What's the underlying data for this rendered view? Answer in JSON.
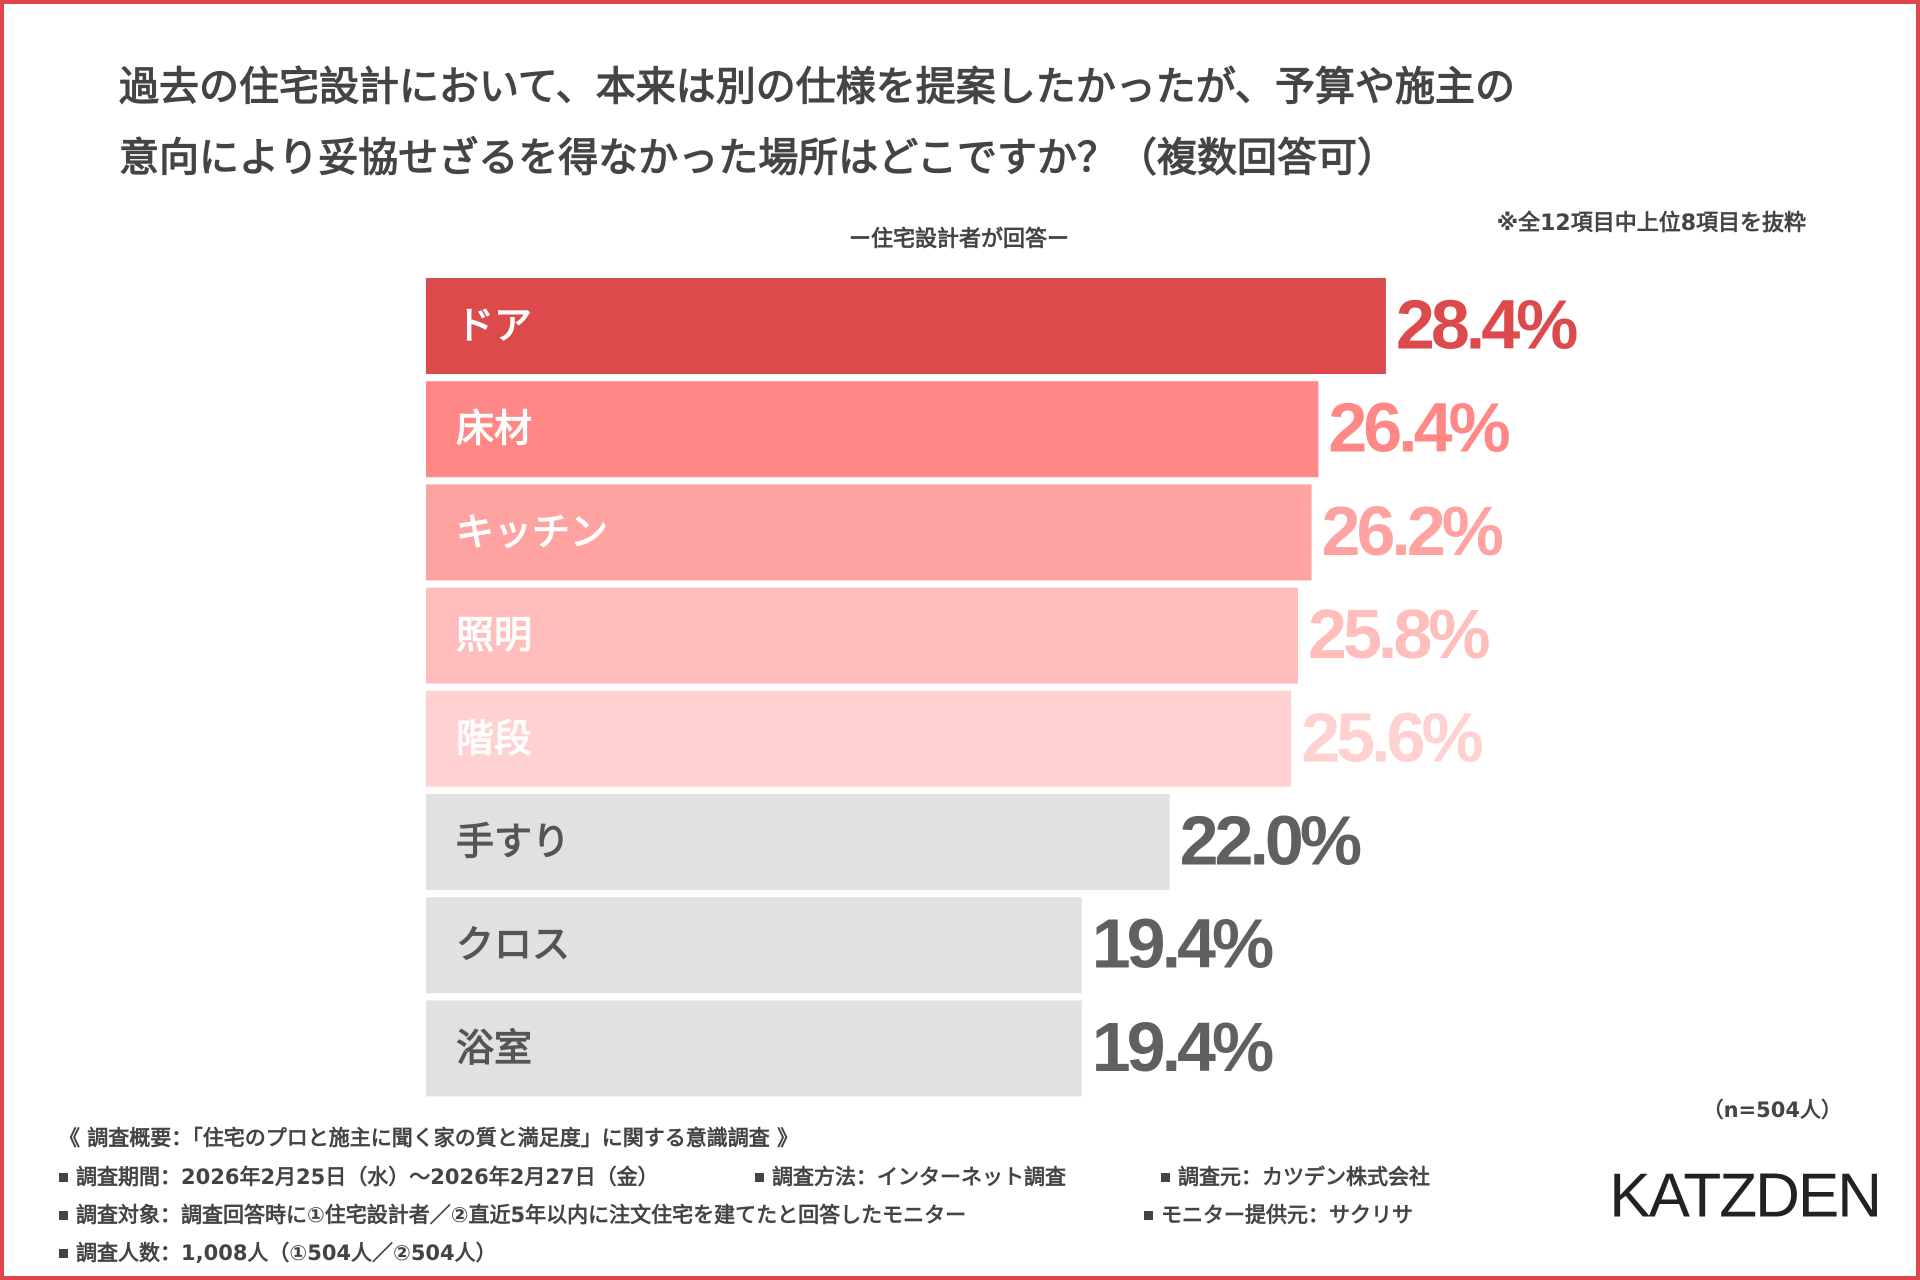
{
  "chart_data": {
    "type": "hbar",
    "title": [
      "過去の住宅設計において、本来は別の仕様を提案したかったが、予算や施主の",
      "意向により妥協せざるを得なかった場所はどこですか？（複数回答可）"
    ],
    "subtitle": "ー住宅設計者が回答ー",
    "note": "※全12項目中上位8項目を抜粋",
    "categories": [
      "ドア",
      "床材",
      "キッチン",
      "照明",
      "階段",
      "手すり",
      "クロス",
      "浴室"
    ],
    "values": [
      28.4,
      26.4,
      26.2,
      25.8,
      25.6,
      22.0,
      19.4,
      19.4
    ],
    "value_labels": [
      "28.4%",
      "26.4%",
      "26.2%",
      "25.8%",
      "25.6%",
      "22.0%",
      "19.4%",
      "19.4%"
    ],
    "colors": [
      "#dc4a4c",
      "#ff8886",
      "#ffa3a2",
      "#ffbdbc",
      "#ffd1d0",
      "#e1e1e1",
      "#e1e1e1",
      "#e1e1e1"
    ],
    "value_label_colors": [
      "#dc4a4c",
      "#ff8886",
      "#ffa3a2",
      "#ffbdbc",
      "#ffd1d0",
      "#606060",
      "#606060",
      "#606060"
    ],
    "category_label_colors": [
      "#ffffff",
      "#ffffff",
      "#ffffff",
      "#ffffff",
      "#ffffff",
      "#555555",
      "#555555",
      "#555555"
    ]
  },
  "footer": {
    "sample": "（n=504人）",
    "heading": "《 調査概要：「住宅のプロと施主に聞く家の質と満足度」に関する意識調査 》",
    "items": [
      [
        "調査期間：2026年2月25日（水）～2026年2月27日（金）",
        "調査方法：インターネット調査",
        "調査元：カツデン株式会社"
      ],
      [
        "調査対象：調査回答時に①住宅設計者／②直近5年以内に注文住宅を建てたと回答したモニター",
        "モニター提供元：サクリサ"
      ],
      [
        "調査人数：1,008人（①504人／②504人）"
      ]
    ],
    "logo": "KATZDEN"
  }
}
